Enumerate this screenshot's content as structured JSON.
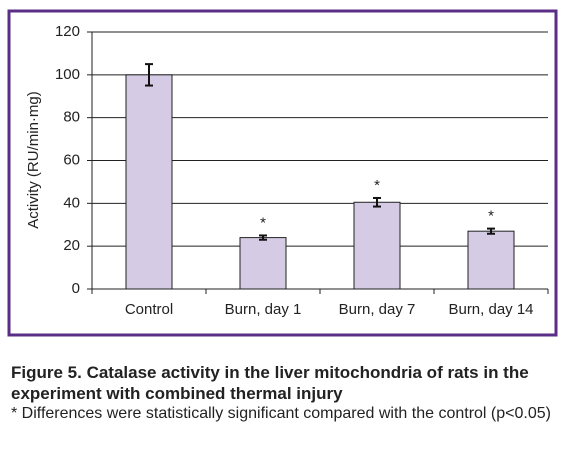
{
  "chart_data": {
    "type": "bar",
    "y_label": "Activity (RU/min·mg)",
    "categories": [
      "Control",
      "Burn, day 1",
      "Burn, day 7",
      "Burn, day 14"
    ],
    "values": [
      100,
      24,
      40.5,
      27
    ],
    "errors": [
      5,
      1,
      2,
      1.2
    ],
    "markers": [
      null,
      "*",
      "*",
      "*"
    ],
    "color": "#d6cbe5",
    "ylim": [
      0,
      120
    ],
    "yticks": [
      0,
      20,
      40,
      60,
      80,
      100,
      120
    ],
    "grid": true
  },
  "caption": {
    "title": "Figure 5. Catalase activity in the liver mitochondria of rats in the experiment with combined thermal injury",
    "note": "* Differences were statistically significant compared with the control (p<0.05)"
  }
}
